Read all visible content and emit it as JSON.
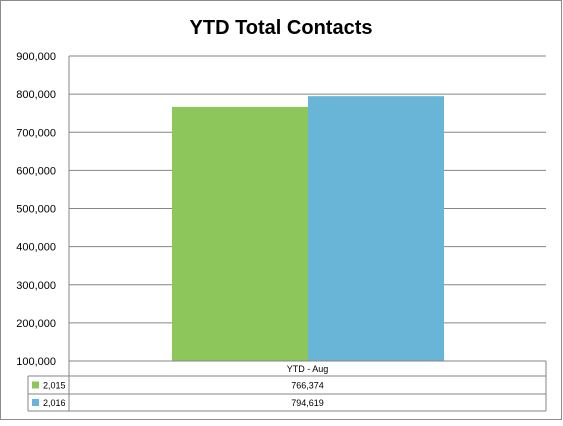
{
  "chart_data": {
    "type": "bar",
    "title": "YTD Total Contacts",
    "categories": [
      "YTD - Aug"
    ],
    "series": [
      {
        "name": "2,015",
        "values": [
          766374
        ],
        "value_label": "766,374",
        "color": "#8DC65A"
      },
      {
        "name": "2,016",
        "values": [
          794619
        ],
        "value_label": "794,619",
        "color": "#68B5D8"
      }
    ],
    "yticks": [
      "900,000",
      "800,000",
      "700,000",
      "600,000",
      "500,000",
      "400,000",
      "300,000",
      "200,000",
      "100,000"
    ],
    "ylim": [
      100000,
      900000
    ],
    "grid": true,
    "legend": "data-table-below"
  }
}
